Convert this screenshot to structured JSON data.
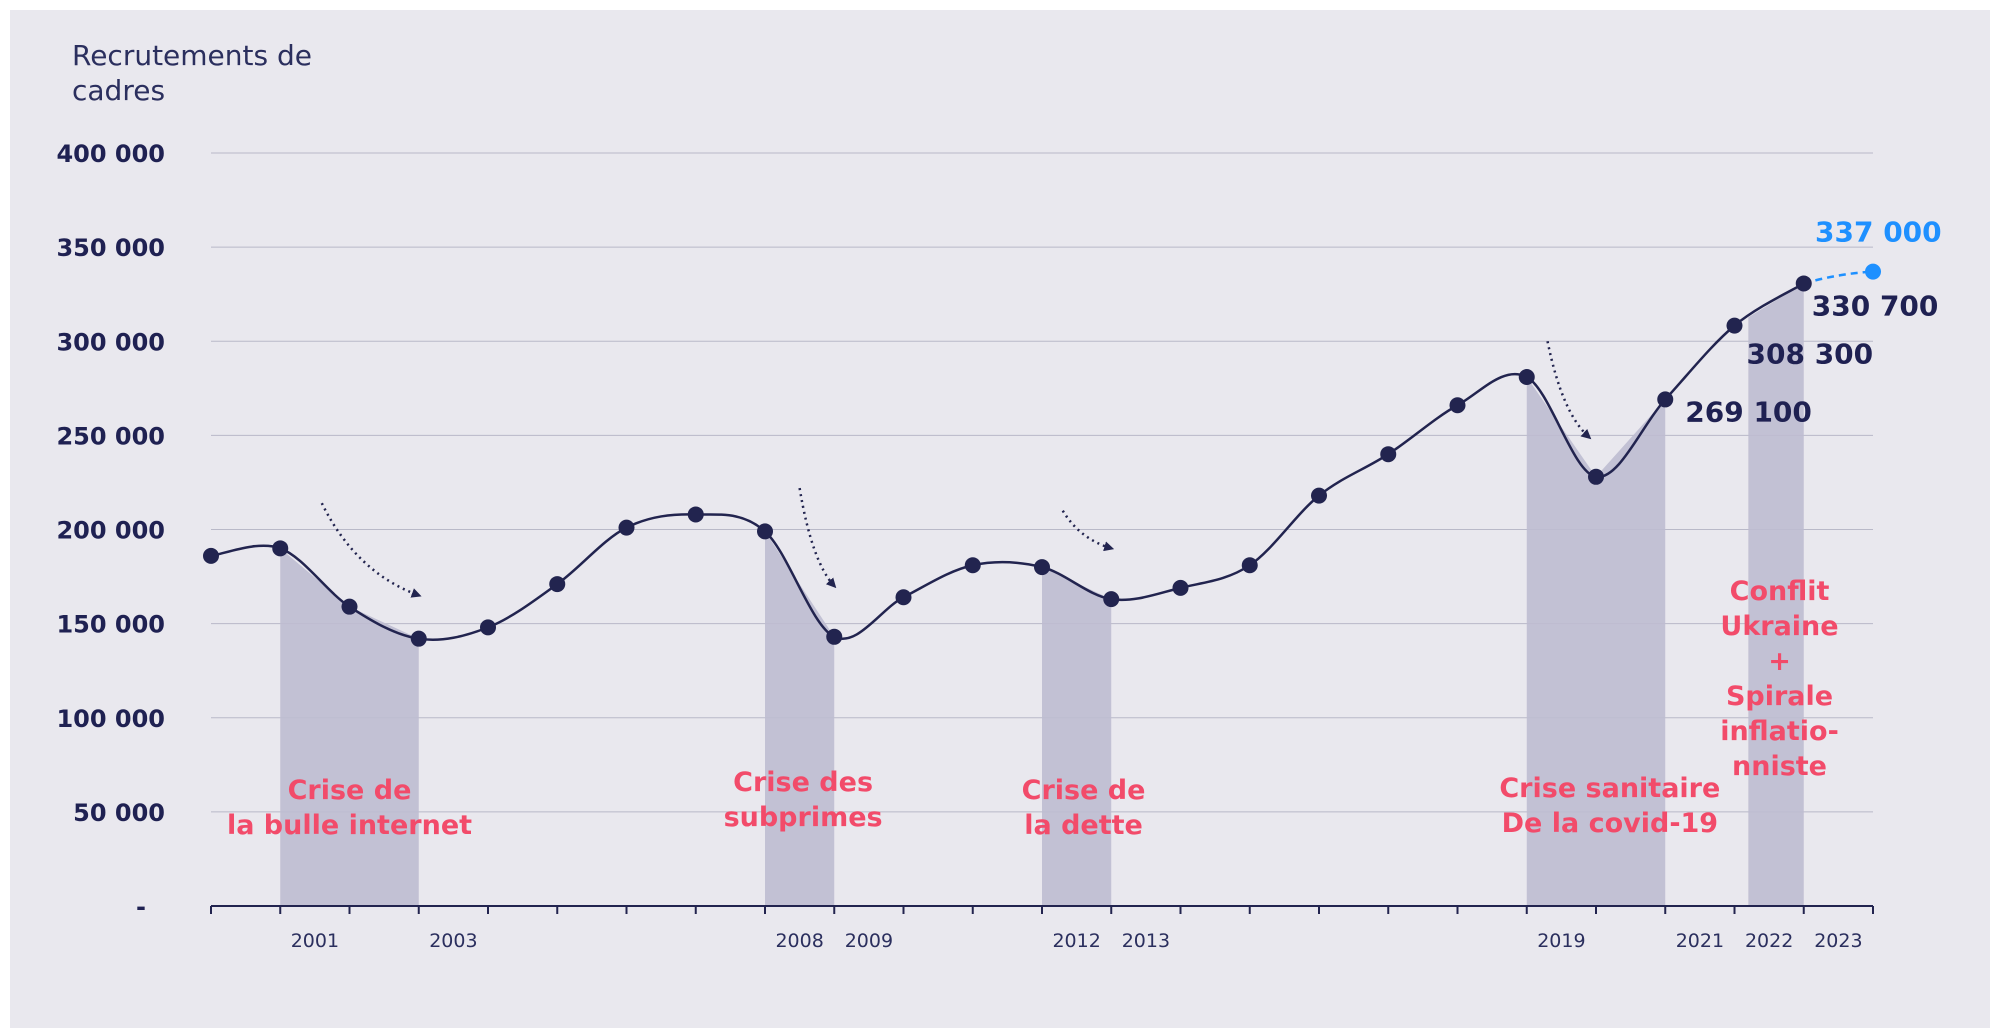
{
  "chart_data": {
    "type": "line",
    "ylabel": "Recrutements de cadres",
    "ylabel_lines": [
      "Recrutements de",
      "cadres"
    ],
    "ylim": [
      0,
      400000
    ],
    "grid": true,
    "y_ticks": [
      {
        "value": 0,
        "label": "-"
      },
      {
        "value": 50000,
        "label": "50 000"
      },
      {
        "value": 100000,
        "label": "100 000"
      },
      {
        "value": 150000,
        "label": "150 000"
      },
      {
        "value": 200000,
        "label": "200 000"
      },
      {
        "value": 250000,
        "label": "250 000"
      },
      {
        "value": 300000,
        "label": "300 000"
      },
      {
        "value": 350000,
        "label": "350 000"
      },
      {
        "value": 400000,
        "label": "400 000"
      }
    ],
    "x": [
      2000,
      2001,
      2002,
      2003,
      2004,
      2005,
      2006,
      2007,
      2008,
      2009,
      2010,
      2011,
      2012,
      2013,
      2014,
      2015,
      2016,
      2017,
      2018,
      2019,
      2020,
      2021,
      2022,
      2023
    ],
    "xlim": [
      2000,
      2024
    ],
    "x_tick_labels": [
      {
        "x": 2001,
        "label": "2001"
      },
      {
        "x": 2003,
        "label": "2003"
      },
      {
        "x": 2008,
        "label": "2008"
      },
      {
        "x": 2009,
        "label": "2009"
      },
      {
        "x": 2012,
        "label": "2012"
      },
      {
        "x": 2013,
        "label": "2013"
      },
      {
        "x": 2019,
        "label": "2019"
      },
      {
        "x": 2021,
        "label": "2021"
      },
      {
        "x": 2022,
        "label": "2022"
      },
      {
        "x": 2023,
        "label": "2023"
      }
    ],
    "series": [
      {
        "values": [
          186000,
          190000,
          159000,
          142000,
          148000,
          171000,
          201000,
          208000,
          199000,
          143000,
          164000,
          181000,
          180000,
          163000,
          169000,
          181000,
          218000,
          240000,
          266000,
          281000,
          228000,
          269100,
          308300,
          330700
        ],
        "color": "#22244f"
      },
      {
        "type": "projection",
        "x": [
          2023,
          2024
        ],
        "values": [
          330700,
          337000
        ],
        "color": "#1e90ff",
        "dashed": true
      }
    ],
    "value_labels": [
      {
        "x": 2021,
        "value": 269100,
        "label": "269 100"
      },
      {
        "x": 2022,
        "value": 308300,
        "label": "308 300"
      },
      {
        "x": 2023,
        "value": 330700,
        "label": "330 700"
      },
      {
        "x": 2024,
        "value": 337000,
        "label": "337 000",
        "color": "#1e90ff"
      }
    ],
    "crisis_periods": [
      {
        "start": 2001,
        "end": 2003,
        "lines": [
          "Crise de",
          "la bulle internet"
        ]
      },
      {
        "start": 2008,
        "end": 2009,
        "lines": [
          "Crise des",
          "subprimes"
        ]
      },
      {
        "start": 2012,
        "end": 2013,
        "lines": [
          "Crise de",
          "la dette"
        ]
      },
      {
        "start": 2019,
        "end": 2021,
        "lines": [
          "Crise sanitaire",
          "De la covid-19"
        ]
      },
      {
        "start": 2022.2,
        "end": 2023,
        "lines": [
          "Conflit",
          "Ukraine",
          "+",
          "Spirale",
          "inflatio-",
          "nniste"
        ]
      }
    ],
    "colors": {
      "background": "#e9e8ee",
      "line": "#22244f",
      "shade": "#bebdd0",
      "grid": "#b9b9c8",
      "crisis_text": "#f24b6a",
      "projection": "#1e90ff"
    }
  }
}
